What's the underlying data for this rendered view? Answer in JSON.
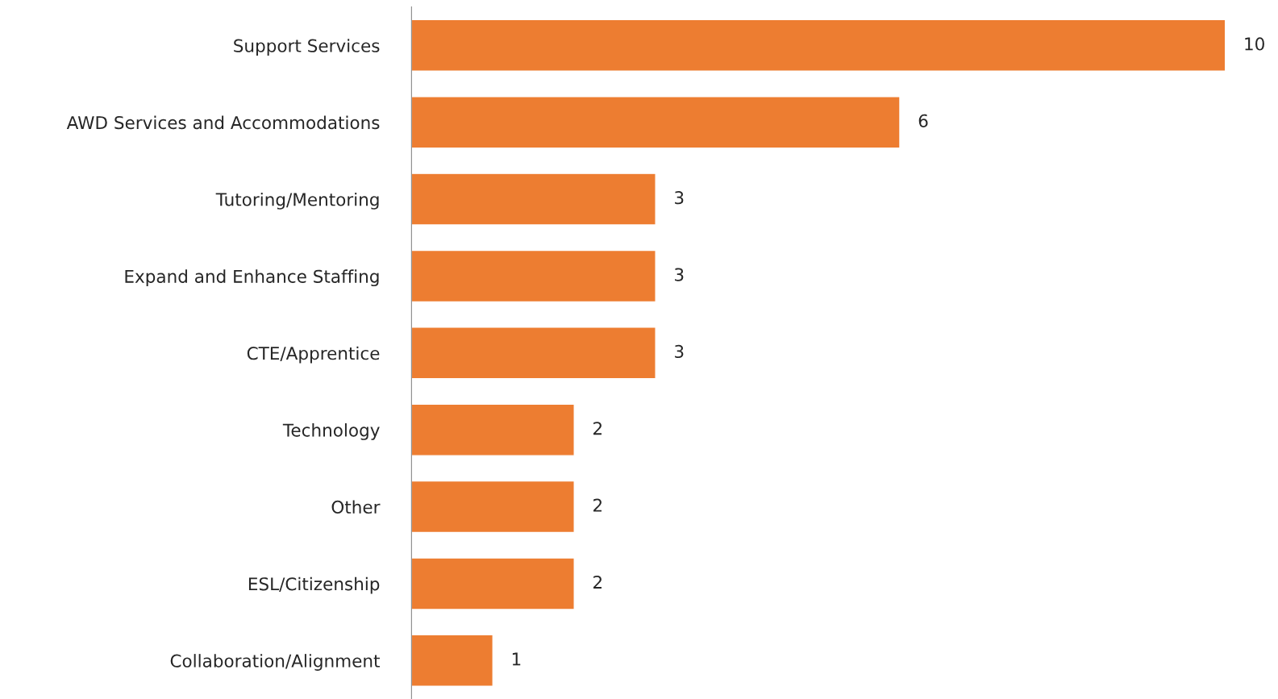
{
  "chart_data": {
    "type": "bar",
    "orientation": "horizontal",
    "data_labels": true,
    "categories": [
      "Support Services",
      "AWD Services and Accommodations",
      "Tutoring/Mentoring",
      "Expand and Enhance Staffing",
      "CTE/Apprentice",
      "Technology",
      "Other",
      "ESL/Citizenship",
      "Collaboration/Alignment"
    ],
    "values": [
      10,
      6,
      3,
      3,
      3,
      2,
      2,
      2,
      1
    ],
    "color": "#ed7d31"
  }
}
